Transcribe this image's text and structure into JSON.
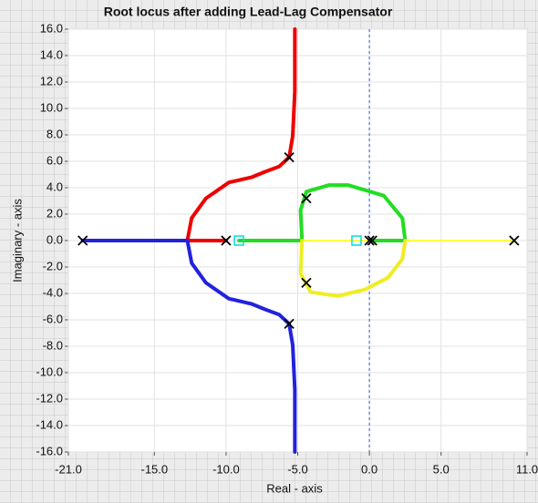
{
  "chart_data": {
    "type": "line",
    "title": "Root locus after adding Lead-Lag Compensator",
    "x_label": "Real - axis",
    "y_label": "Imaginary - axis",
    "xlim": [
      -21,
      11
    ],
    "ylim": [
      -16,
      16
    ],
    "xticks": [
      {
        "value": -21,
        "label": "-21.0"
      },
      {
        "value": -15,
        "label": "-15.0"
      },
      {
        "value": -10,
        "label": "-10.0"
      },
      {
        "value": -5,
        "label": "-5.0"
      },
      {
        "value": 0,
        "label": "0.0"
      },
      {
        "value": 5,
        "label": "5.0"
      },
      {
        "value": 11,
        "label": "11.0"
      }
    ],
    "yticks": [
      {
        "value": 16,
        "label": "16.0"
      },
      {
        "value": 14,
        "label": "14.0"
      },
      {
        "value": 12,
        "label": "12.0"
      },
      {
        "value": 10,
        "label": "10.0"
      },
      {
        "value": 8,
        "label": "8.0"
      },
      {
        "value": 6,
        "label": "6.0"
      },
      {
        "value": 4,
        "label": "4.0"
      },
      {
        "value": 2,
        "label": "2.0"
      },
      {
        "value": 0,
        "label": "0.0"
      },
      {
        "value": -2,
        "label": "-2.0"
      },
      {
        "value": -4,
        "label": "-4.0"
      },
      {
        "value": -6,
        "label": "-6.0"
      },
      {
        "value": -8,
        "label": "-8.0"
      },
      {
        "value": -10,
        "label": "-10.0"
      },
      {
        "value": -12,
        "label": "-12.0"
      },
      {
        "value": -14,
        "label": "-14.0"
      },
      {
        "value": -16,
        "label": "-16.0"
      }
    ],
    "grid": true,
    "series": [
      {
        "color": "#ffff00",
        "line_width": 1.5,
        "x": [
          -4.7,
          10.1
        ],
        "y": [
          0,
          0
        ]
      },
      {
        "color": "#ee0000",
        "line_width": 4,
        "x": [
          -10,
          -12.7,
          -12.4,
          -11.4,
          -9.8,
          -8.2,
          -7.3,
          -6.3,
          -5.6,
          -5.35,
          -5.2,
          -5.2
        ],
        "y": [
          0,
          0,
          1.7,
          3.2,
          4.4,
          4.8,
          5.2,
          5.6,
          6.3,
          7.9,
          11.3,
          16
        ]
      },
      {
        "color": "#2222dd",
        "line_width": 4,
        "x": [
          -20,
          -12.7,
          -12.4,
          -11.4,
          -9.8,
          -8.2,
          -7.3,
          -6.3,
          -5.6,
          -5.35,
          -5.2,
          -5.2
        ],
        "y": [
          0,
          0,
          -1.7,
          -3.2,
          -4.4,
          -4.8,
          -5.2,
          -5.6,
          -6.3,
          -7.9,
          -11.3,
          -16
        ]
      },
      {
        "color": "#22dd22",
        "line_width": 4,
        "x": [
          -9.1,
          -4.7,
          -4.8,
          -4.4,
          -2.8,
          -1.5,
          1,
          2.3,
          2.5,
          0.2
        ],
        "y": [
          0,
          0,
          2.3,
          3.7,
          4.2,
          4.2,
          3.4,
          1.7,
          0,
          0
        ]
      },
      {
        "color": "#eeee22",
        "line_width": 4,
        "x": [
          -4.7,
          -4.8,
          -4.1,
          -2.2,
          -0.3,
          1.3,
          2.3,
          2.5
        ],
        "y": [
          0,
          -2.5,
          -3.9,
          -4.2,
          -3.7,
          -2.8,
          -1.4,
          0
        ]
      }
    ],
    "poles": {
      "color": "#000000",
      "x": [
        -20,
        -10,
        -5.6,
        -5.6,
        -4.4,
        -4.4,
        0,
        0.2,
        10.1
      ],
      "y": [
        0,
        0,
        6.3,
        -6.3,
        3.2,
        -3.2,
        0,
        0,
        0
      ]
    },
    "zeros": {
      "color": "#00dddd",
      "x": [
        -9.1,
        -0.9
      ],
      "y": [
        0,
        0
      ]
    }
  }
}
